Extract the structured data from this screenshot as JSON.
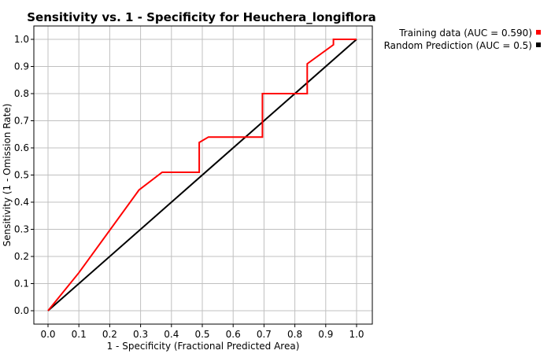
{
  "chart_data": {
    "type": "line",
    "title": "Sensitivity vs. 1 - Specificity for Heuchera_longiflora",
    "xlabel": "1 - Specificity  (Fractional Predicted Area)",
    "ylabel": "Sensitivity  (1 - Omission Rate)",
    "xlim": [
      0.0,
      1.0
    ],
    "ylim": [
      0.0,
      1.0
    ],
    "x_ticks": [
      "0.0",
      "0.1",
      "0.2",
      "0.3",
      "0.4",
      "0.5",
      "0.6",
      "0.7",
      "0.8",
      "0.9",
      "1.0"
    ],
    "y_ticks": [
      "0.0",
      "0.1",
      "0.2",
      "0.3",
      "0.4",
      "0.5",
      "0.6",
      "0.7",
      "0.8",
      "0.9",
      "1.0"
    ],
    "grid": true,
    "legend_position": "top-right",
    "series": [
      {
        "name": "Training data (AUC = 0.590)",
        "color": "#ff0000",
        "x": [
          0.0,
          0.1,
          0.295,
          0.37,
          0.49,
          0.49,
          0.52,
          0.695,
          0.695,
          0.84,
          0.84,
          0.925,
          0.925,
          1.0
        ],
        "y": [
          0.0,
          0.14,
          0.445,
          0.51,
          0.51,
          0.62,
          0.64,
          0.64,
          0.8,
          0.8,
          0.91,
          0.98,
          1.0,
          1.0
        ]
      },
      {
        "name": "Random Prediction (AUC = 0.5)",
        "color": "#000000",
        "x": [
          0.0,
          1.0
        ],
        "y": [
          0.0,
          1.0
        ]
      }
    ]
  }
}
